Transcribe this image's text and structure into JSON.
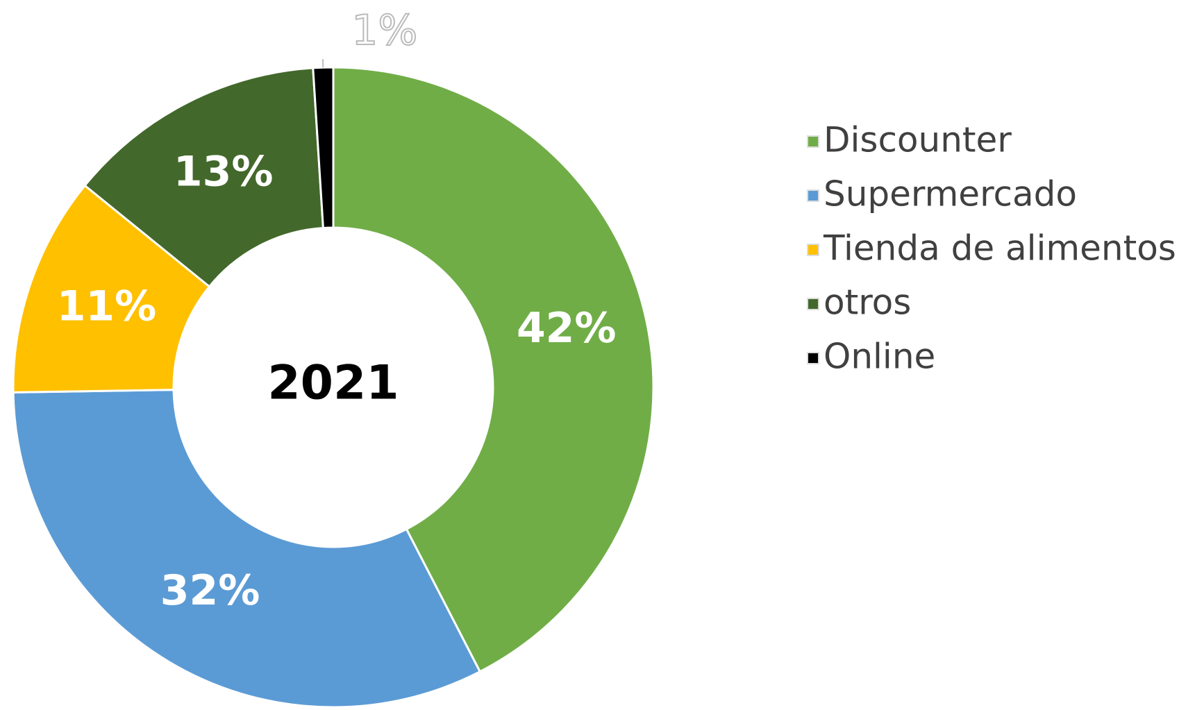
{
  "chart_data": {
    "type": "donut",
    "center_label": "2021",
    "categories": [
      "Discounter",
      "Supermercado",
      "Tienda de alimentos",
      "otros",
      "Online"
    ],
    "values": [
      42,
      32,
      11,
      13,
      1
    ],
    "value_labels": [
      "42%",
      "32%",
      "11%",
      "13%",
      "1%"
    ],
    "colors": [
      "#70ad47",
      "#5b9bd5",
      "#ffc000",
      "#43682b",
      "#000000"
    ],
    "legend": "right"
  }
}
